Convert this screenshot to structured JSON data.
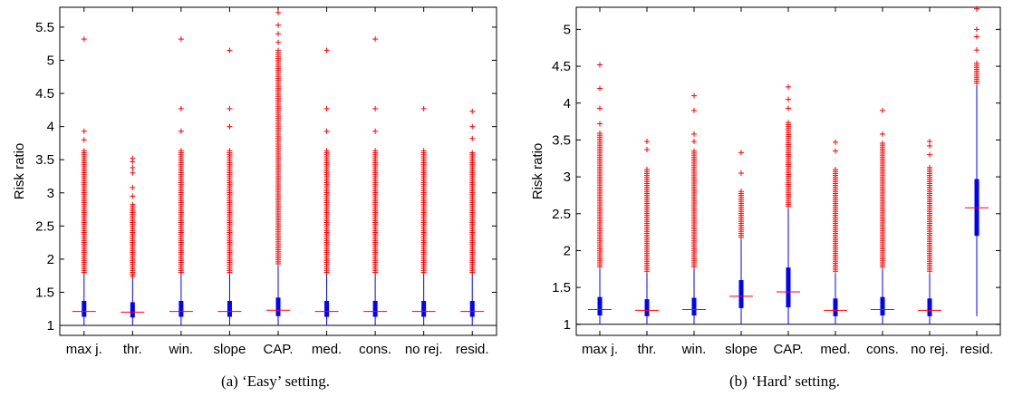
{
  "colors": {
    "outlier": "#ff0000",
    "median": "#ff0000",
    "box": "#0000ff",
    "whisker": "#0000ff",
    "axis": "#000000",
    "reference_line": "#000000"
  },
  "chart_data": [
    {
      "type": "box",
      "caption": "(a) ‘Easy’ setting.",
      "ylabel": "Risk ratio",
      "xlabel": "",
      "ylim": [
        0.85,
        5.8
      ],
      "yticks": [
        1,
        1.5,
        2,
        2.5,
        3,
        3.5,
        4,
        4.5,
        5,
        5.5
      ],
      "reference_line_y": 1,
      "grid": false,
      "categories": [
        "max j.",
        "thr.",
        "win.",
        "slope",
        "CAP.",
        "med.",
        "cons.",
        "no rej.",
        "resid."
      ],
      "series": [
        {
          "median": 1.21,
          "q1": 1.13,
          "q3": 1.37,
          "whisker_low": 1.0,
          "whisker_high": 1.8,
          "dense_outliers_to": 3.65,
          "outliers": [
            3.8,
            3.93,
            5.32
          ]
        },
        {
          "median": 1.2,
          "q1": 1.12,
          "q3": 1.35,
          "whisker_low": 1.0,
          "whisker_high": 1.74,
          "dense_outliers_to": 2.85,
          "outliers": [
            2.95,
            3.08,
            3.3,
            3.38,
            3.47,
            3.52
          ]
        },
        {
          "median": 1.21,
          "q1": 1.13,
          "q3": 1.37,
          "whisker_low": 1.0,
          "whisker_high": 1.8,
          "dense_outliers_to": 3.65,
          "outliers": [
            3.93,
            4.27,
            5.32
          ]
        },
        {
          "median": 1.21,
          "q1": 1.13,
          "q3": 1.37,
          "whisker_low": 1.0,
          "whisker_high": 1.8,
          "dense_outliers_to": 3.65,
          "outliers": [
            4.0,
            4.27,
            5.15
          ]
        },
        {
          "median": 1.23,
          "q1": 1.14,
          "q3": 1.42,
          "whisker_low": 1.0,
          "whisker_high": 1.93,
          "dense_outliers_to": 5.15,
          "outliers": [
            5.27,
            5.4,
            5.53,
            5.72
          ]
        },
        {
          "median": 1.21,
          "q1": 1.13,
          "q3": 1.37,
          "whisker_low": 1.0,
          "whisker_high": 1.8,
          "dense_outliers_to": 3.65,
          "outliers": [
            3.93,
            4.27,
            5.15
          ]
        },
        {
          "median": 1.21,
          "q1": 1.13,
          "q3": 1.37,
          "whisker_low": 1.0,
          "whisker_high": 1.8,
          "dense_outliers_to": 3.65,
          "outliers": [
            3.93,
            4.27,
            5.32
          ]
        },
        {
          "median": 1.21,
          "q1": 1.13,
          "q3": 1.37,
          "whisker_low": 1.0,
          "whisker_high": 1.8,
          "dense_outliers_to": 3.65,
          "outliers": [
            4.27
          ]
        },
        {
          "median": 1.21,
          "q1": 1.13,
          "q3": 1.37,
          "whisker_low": 1.0,
          "whisker_high": 1.8,
          "dense_outliers_to": 3.62,
          "outliers": [
            3.82,
            4.0,
            4.23
          ]
        }
      ]
    },
    {
      "type": "box",
      "caption": "(b) ‘Hard’ setting.",
      "ylabel": "Risk ratio",
      "xlabel": "",
      "ylim": [
        0.85,
        5.3
      ],
      "yticks": [
        1,
        1.5,
        2,
        2.5,
        3,
        3.5,
        4,
        4.5,
        5
      ],
      "reference_line_y": 1,
      "grid": false,
      "categories": [
        "max j.",
        "thr.",
        "win.",
        "slope",
        "CAP.",
        "med.",
        "cons.",
        "no rej.",
        "resid."
      ],
      "series": [
        {
          "median": 1.2,
          "q1": 1.12,
          "q3": 1.37,
          "whisker_low": 1.0,
          "whisker_high": 1.78,
          "dense_outliers_to": 3.6,
          "outliers": [
            3.72,
            3.93,
            4.2,
            4.52
          ]
        },
        {
          "median": 1.19,
          "q1": 1.11,
          "q3": 1.34,
          "whisker_low": 1.0,
          "whisker_high": 1.72,
          "dense_outliers_to": 3.1,
          "outliers": [
            3.37,
            3.48
          ]
        },
        {
          "median": 1.2,
          "q1": 1.12,
          "q3": 1.36,
          "whisker_low": 1.0,
          "whisker_high": 1.78,
          "dense_outliers_to": 3.35,
          "outliers": [
            3.48,
            3.58,
            3.9,
            4.1
          ]
        },
        {
          "median": 1.38,
          "q1": 1.22,
          "q3": 1.6,
          "whisker_low": 1.0,
          "whisker_high": 2.18,
          "dense_outliers_to": 2.82,
          "outliers": [
            3.05,
            3.33
          ]
        },
        {
          "median": 1.44,
          "q1": 1.23,
          "q3": 1.77,
          "whisker_low": 1.0,
          "whisker_high": 2.6,
          "dense_outliers_to": 3.75,
          "outliers": [
            3.93,
            4.05,
            4.22
          ]
        },
        {
          "median": 1.19,
          "q1": 1.11,
          "q3": 1.35,
          "whisker_low": 1.0,
          "whisker_high": 1.72,
          "dense_outliers_to": 3.1,
          "outliers": [
            3.35,
            3.47
          ]
        },
        {
          "median": 1.2,
          "q1": 1.12,
          "q3": 1.37,
          "whisker_low": 1.0,
          "whisker_high": 1.78,
          "dense_outliers_to": 3.48,
          "outliers": [
            3.58,
            3.9
          ]
        },
        {
          "median": 1.19,
          "q1": 1.11,
          "q3": 1.35,
          "whisker_low": 1.0,
          "whisker_high": 1.72,
          "dense_outliers_to": 3.15,
          "outliers": [
            3.3,
            3.42,
            3.48
          ]
        },
        {
          "median": 2.58,
          "q1": 2.2,
          "q3": 2.97,
          "whisker_low": 1.11,
          "whisker_high": 4.27,
          "dense_outliers_to": 4.55,
          "outliers": [
            4.72,
            4.9,
            5.0,
            5.28
          ]
        }
      ]
    }
  ]
}
